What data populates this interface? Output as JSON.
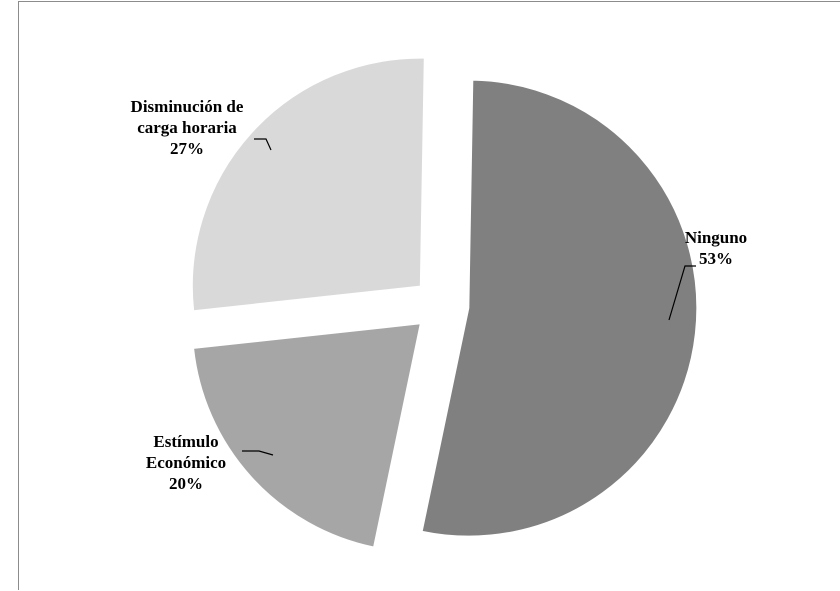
{
  "chart_data": {
    "type": "pie",
    "exploded": true,
    "slices": [
      {
        "label_lines": [
          "Ninguno",
          "53%"
        ],
        "value": 53,
        "color": "#808080"
      },
      {
        "label_lines": [
          "Estímulo",
          "Económico",
          "20%"
        ],
        "value": 20,
        "color": "#a6a6a6"
      },
      {
        "label_lines": [
          "Disminución de",
          "carga horaria",
          "27%"
        ],
        "value": 27,
        "color": "#d9d9d9"
      }
    ],
    "legend": "none",
    "grid": false
  }
}
